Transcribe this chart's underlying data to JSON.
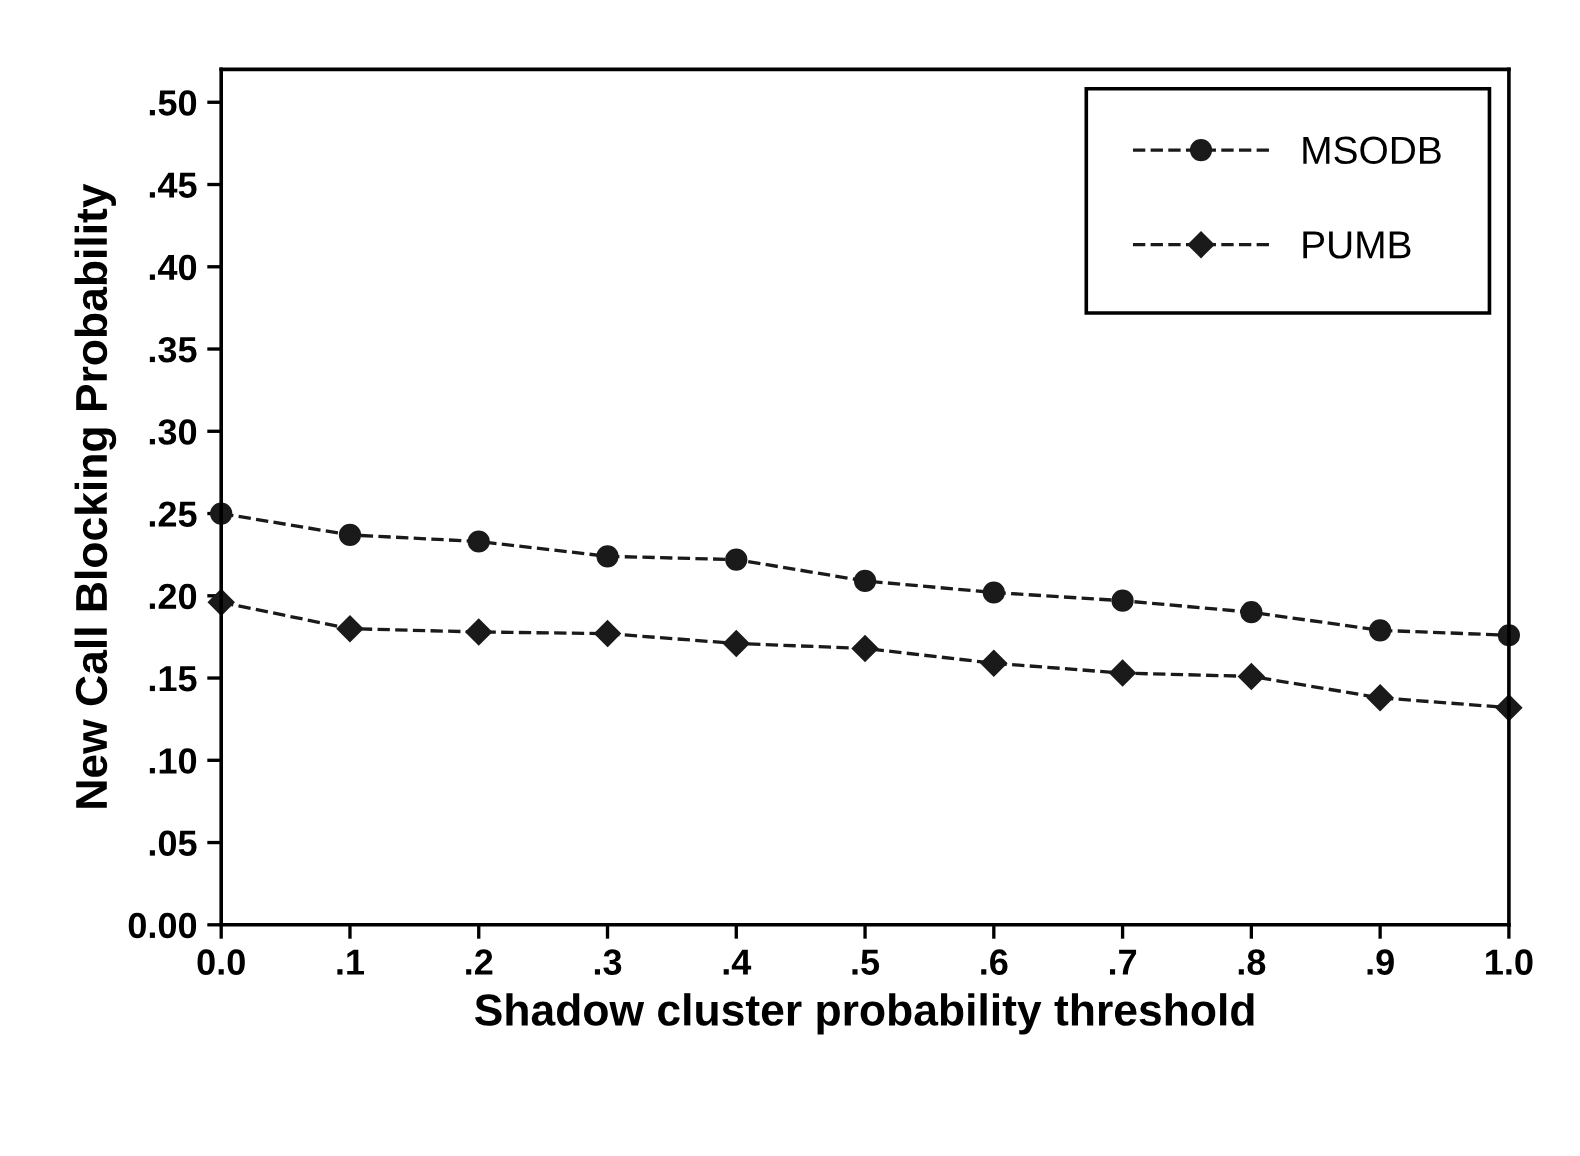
{
  "chart_data": {
    "type": "line",
    "xlabel": "Shadow cluster probability threshold",
    "ylabel": "New Call Blocking Probability",
    "x": [
      0,
      0.1,
      0.2,
      0.3,
      0.4,
      0.5,
      0.6,
      0.7,
      0.8,
      0.9,
      1.0
    ],
    "series": [
      {
        "name": "MSODB",
        "color": "#1a1a1a",
        "marker": "circle",
        "values": [
          0.25,
          0.237,
          0.233,
          0.224,
          0.222,
          0.209,
          0.202,
          0.197,
          0.19,
          0.179,
          0.176
        ]
      },
      {
        "name": "PUMB",
        "color": "#1a1a1a",
        "marker": "diamond",
        "values": [
          0.196,
          0.18,
          0.178,
          0.177,
          0.171,
          0.168,
          0.159,
          0.153,
          0.151,
          0.138,
          0.132
        ]
      }
    ],
    "xlim": [
      0,
      1.0
    ],
    "ylim": [
      0,
      0.52
    ],
    "xticks": [
      {
        "value": 0,
        "label": "0.0"
      },
      {
        "value": 0.1,
        "label": ".1"
      },
      {
        "value": 0.2,
        "label": ".2"
      },
      {
        "value": 0.3,
        "label": ".3"
      },
      {
        "value": 0.4,
        "label": ".4"
      },
      {
        "value": 0.5,
        "label": ".5"
      },
      {
        "value": 0.6,
        "label": ".6"
      },
      {
        "value": 0.7,
        "label": ".7"
      },
      {
        "value": 0.8,
        "label": ".8"
      },
      {
        "value": 0.9,
        "label": ".9"
      },
      {
        "value": 1.0,
        "label": "1.0"
      }
    ],
    "yticks": [
      {
        "value": 0,
        "label": "0.00"
      },
      {
        "value": 0.05,
        "label": ".05"
      },
      {
        "value": 0.1,
        "label": ".10"
      },
      {
        "value": 0.15,
        "label": ".15"
      },
      {
        "value": 0.2,
        "label": ".20"
      },
      {
        "value": 0.25,
        "label": ".25"
      },
      {
        "value": 0.3,
        "label": ".30"
      },
      {
        "value": 0.35,
        "label": ".35"
      },
      {
        "value": 0.4,
        "label": ".40"
      },
      {
        "value": 0.45,
        "label": ".45"
      },
      {
        "value": 0.5,
        "label": ".50"
      }
    ],
    "grid": false,
    "legend": "top right",
    "line_style": "dashed"
  }
}
